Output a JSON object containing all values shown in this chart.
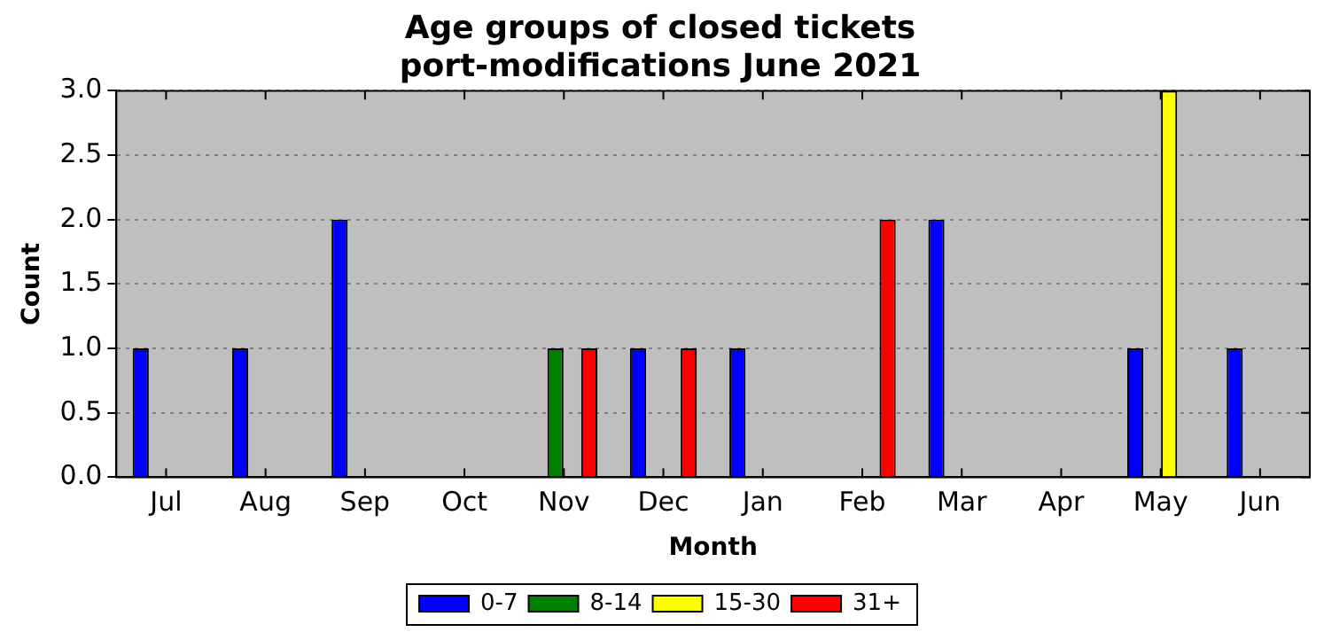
{
  "chart_data": {
    "type": "bar",
    "title": "Age groups of closed tickets\nport-modifications June 2021",
    "xlabel": "Month",
    "ylabel": "Count",
    "categories": [
      "Jul",
      "Aug",
      "Sep",
      "Oct",
      "Nov",
      "Dec",
      "Jan",
      "Feb",
      "Mar",
      "Apr",
      "May",
      "Jun"
    ],
    "series": [
      {
        "name": "0-7",
        "color": "#0000ff",
        "values": [
          1,
          1,
          2,
          0,
          0,
          1,
          1,
          0,
          2,
          0,
          1,
          1
        ]
      },
      {
        "name": "8-14",
        "color": "#008000",
        "values": [
          0,
          0,
          0,
          0,
          1,
          0,
          0,
          0,
          0,
          0,
          0,
          0
        ]
      },
      {
        "name": "15-30",
        "color": "#ffff00",
        "values": [
          0,
          0,
          0,
          0,
          0,
          0,
          0,
          0,
          0,
          0,
          3,
          0
        ]
      },
      {
        "name": "31+",
        "color": "#ff0000",
        "values": [
          0,
          0,
          0,
          0,
          1,
          1,
          0,
          2,
          0,
          0,
          0,
          0
        ]
      }
    ],
    "ylim": [
      0,
      3
    ],
    "yticks": [
      {
        "value": 0,
        "label": "0.0"
      },
      0.5,
      {
        "value": 1,
        "label": "1.0"
      },
      1.5,
      {
        "value": 2,
        "label": "2.0"
      },
      2.5,
      {
        "value": 3,
        "label": "3.0"
      }
    ],
    "grid": "y",
    "legend": "bottom"
  }
}
